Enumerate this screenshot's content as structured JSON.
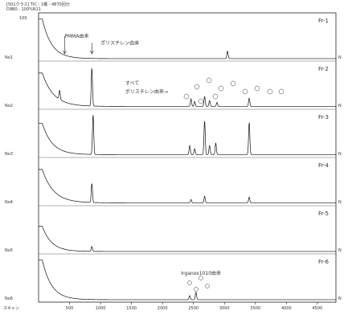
{
  "header": {
    "line1": "[501クラス] TIC : 1種 - 4870回分",
    "line2": "D9B0 - 100%N11"
  },
  "chart_data": {
    "type": "line",
    "x_ticks": [
      "500",
      "1000",
      "1500",
      "2000",
      "2500",
      "3000",
      "3500",
      "4000",
      "4500"
    ],
    "xlim": [
      0,
      4800
    ],
    "bottom_label": "スキャン",
    "traces": [
      {
        "name": "Fr-1",
        "left_label": "No1",
        "top_left_label": "100",
        "base": 0.02,
        "start": 0.95,
        "decay": 150,
        "peaks": [
          {
            "x": 3050,
            "h": 0.18
          }
        ]
      },
      {
        "name": "Fr-2",
        "left_label": "No2",
        "top_left_label": "",
        "base": 0.03,
        "start": 0.8,
        "decay": 180,
        "peaks": [
          {
            "x": 340,
            "h": 0.22
          },
          {
            "x": 860,
            "h": 0.92
          },
          {
            "x": 2460,
            "h": 0.18
          },
          {
            "x": 2520,
            "h": 0.12
          },
          {
            "x": 2680,
            "h": 0.24
          },
          {
            "x": 2760,
            "h": 0.14
          },
          {
            "x": 2880,
            "h": 0.1
          },
          {
            "x": 3400,
            "h": 0.2
          }
        ]
      },
      {
        "name": "Fr-3",
        "left_label": "No3",
        "top_left_label": "",
        "base": 0.03,
        "start": 0.75,
        "decay": 160,
        "peaks": [
          {
            "x": 880,
            "h": 0.96
          },
          {
            "x": 2440,
            "h": 0.22
          },
          {
            "x": 2520,
            "h": 0.14
          },
          {
            "x": 2680,
            "h": 0.82
          },
          {
            "x": 2760,
            "h": 0.22
          },
          {
            "x": 2860,
            "h": 0.28
          },
          {
            "x": 3400,
            "h": 0.78
          }
        ]
      },
      {
        "name": "Fr-4",
        "left_label": "No4",
        "top_left_label": "",
        "base": 0.03,
        "start": 0.8,
        "decay": 180,
        "peaks": [
          {
            "x": 860,
            "h": 0.46
          },
          {
            "x": 2460,
            "h": 0.08
          },
          {
            "x": 2680,
            "h": 0.16
          },
          {
            "x": 3400,
            "h": 0.14
          }
        ]
      },
      {
        "name": "Fr-5",
        "left_label": "No5",
        "top_left_label": "",
        "base": 0.02,
        "start": 0.6,
        "decay": 150,
        "peaks": [
          {
            "x": 860,
            "h": 0.12
          }
        ]
      },
      {
        "name": "Fr-6",
        "left_label": "No6",
        "top_left_label": "",
        "base": 0.02,
        "start": 0.95,
        "decay": 150,
        "peaks": [
          {
            "x": 2440,
            "h": 0.1
          },
          {
            "x": 2540,
            "h": 0.18
          }
        ]
      }
    ],
    "annotations": [
      {
        "text": "PMMA由来",
        "trace": 0,
        "x": 420,
        "y": 0.52,
        "arrow_x": 420
      },
      {
        "text": "ポリスチレン由来",
        "trace": 0,
        "x": 1000,
        "y": 0.36,
        "arrow_x": 860
      },
      {
        "text": "すべて",
        "trace": 1,
        "x": 1400,
        "y": 0.55
      },
      {
        "text": "ポリスチレン由来→",
        "trace": 1,
        "x": 1400,
        "y": 0.35
      },
      {
        "text": "Irganox1010由来",
        "trace": 5,
        "x": 2300,
        "y": 0.62
      }
    ]
  }
}
